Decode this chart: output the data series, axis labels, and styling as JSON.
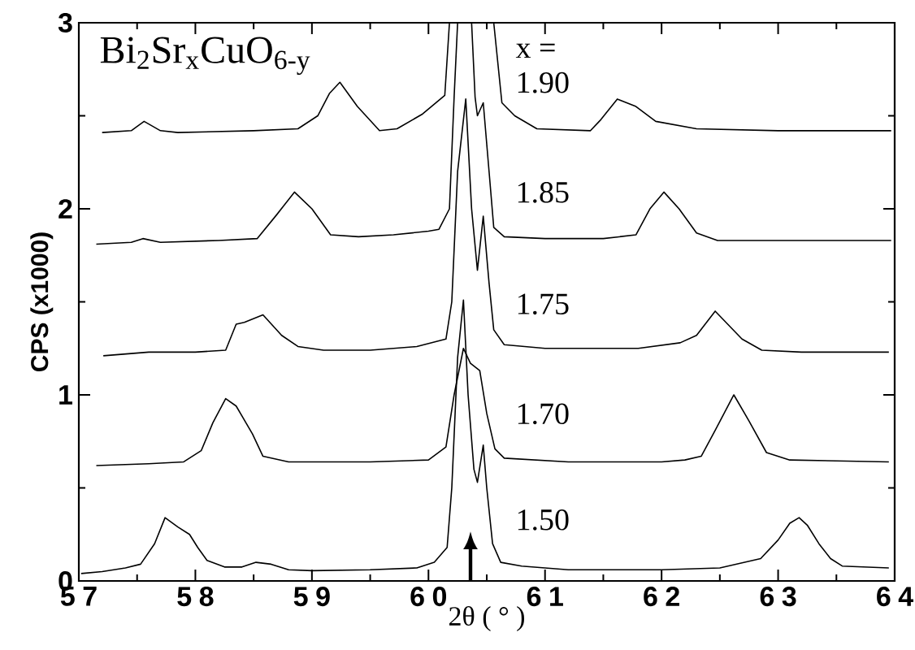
{
  "chart_data": {
    "type": "line",
    "title": "Bi$_{2}$Sr$_{x}$CuO$_{6-y}$",
    "xlabel": "2θ ( ° )",
    "ylabel": "CPS  (x1000)",
    "xlim": [
      57,
      64
    ],
    "ylim": [
      0,
      3
    ],
    "xticks": [
      57,
      58,
      59,
      60,
      61,
      62,
      63,
      64
    ],
    "yticks": [
      0,
      1,
      2,
      3
    ],
    "annotations": [
      "x ="
    ],
    "series": [
      {
        "name": "1.50",
        "color": "#000000",
        "x": [
          57.02,
          57.2,
          57.4,
          57.53,
          57.65,
          57.74,
          57.85,
          57.95,
          58.02,
          58.1,
          58.25,
          58.4,
          58.52,
          58.65,
          58.8,
          59.0,
          59.5,
          59.9,
          60.05,
          60.16,
          60.2,
          60.25,
          60.3,
          60.34,
          60.39,
          60.42,
          60.47,
          60.5,
          60.55,
          60.62,
          60.8,
          61.2,
          62.0,
          62.5,
          62.85,
          63.0,
          63.1,
          63.18,
          63.25,
          63.35,
          63.45,
          63.55,
          63.95
        ],
        "values": [
          0.04,
          0.05,
          0.07,
          0.09,
          0.2,
          0.34,
          0.29,
          0.25,
          0.18,
          0.11,
          0.075,
          0.075,
          0.1,
          0.09,
          0.06,
          0.055,
          0.06,
          0.07,
          0.1,
          0.18,
          0.5,
          1.2,
          1.51,
          1.0,
          0.6,
          0.53,
          0.73,
          0.5,
          0.2,
          0.1,
          0.08,
          0.06,
          0.06,
          0.07,
          0.12,
          0.22,
          0.31,
          0.34,
          0.3,
          0.2,
          0.12,
          0.08,
          0.07
        ]
      },
      {
        "name": "1.70",
        "color": "#000000",
        "x": [
          57.15,
          57.6,
          57.9,
          58.05,
          58.15,
          58.26,
          58.35,
          58.49,
          58.58,
          58.8,
          59.5,
          60.0,
          60.15,
          60.22,
          60.3,
          60.36,
          60.44,
          60.5,
          60.57,
          60.65,
          61.2,
          62.0,
          62.2,
          62.34,
          62.46,
          62.62,
          62.75,
          62.9,
          63.1,
          63.95
        ],
        "values": [
          0.62,
          0.63,
          0.64,
          0.7,
          0.85,
          0.98,
          0.94,
          0.79,
          0.67,
          0.64,
          0.64,
          0.65,
          0.72,
          1.0,
          1.25,
          1.17,
          1.13,
          0.9,
          0.71,
          0.66,
          0.64,
          0.64,
          0.65,
          0.67,
          0.81,
          1.0,
          0.86,
          0.69,
          0.65,
          0.64
        ]
      },
      {
        "name": "1.75",
        "color": "#000000",
        "x": [
          57.21,
          57.6,
          58.0,
          58.26,
          58.35,
          58.42,
          58.58,
          58.74,
          58.88,
          59.1,
          59.5,
          59.9,
          60.15,
          60.2,
          60.25,
          60.32,
          60.37,
          60.42,
          60.47,
          60.52,
          60.56,
          60.65,
          61.0,
          61.8,
          62.16,
          62.3,
          62.46,
          62.69,
          62.86,
          63.2,
          63.95
        ],
        "values": [
          1.21,
          1.23,
          1.23,
          1.24,
          1.38,
          1.39,
          1.43,
          1.32,
          1.26,
          1.24,
          1.24,
          1.26,
          1.3,
          1.5,
          2.2,
          2.59,
          2.0,
          1.67,
          1.96,
          1.6,
          1.35,
          1.27,
          1.25,
          1.25,
          1.28,
          1.32,
          1.45,
          1.3,
          1.24,
          1.23,
          1.23
        ]
      },
      {
        "name": "1.85",
        "color": "#000000",
        "x": [
          57.15,
          57.45,
          57.55,
          57.7,
          58.2,
          58.53,
          58.7,
          58.85,
          59.0,
          59.16,
          59.4,
          59.7,
          60.0,
          60.09,
          60.18,
          60.22,
          60.25,
          60.3,
          60.37,
          60.4,
          60.42,
          60.47,
          60.52,
          60.56,
          60.65,
          61.0,
          61.5,
          61.78,
          61.9,
          62.02,
          62.15,
          62.3,
          62.48,
          63.0,
          63.97
        ],
        "values": [
          1.81,
          1.82,
          1.84,
          1.82,
          1.83,
          1.84,
          1.97,
          2.09,
          2.0,
          1.86,
          1.85,
          1.86,
          1.88,
          1.89,
          2.0,
          2.6,
          3.0,
          null,
          3.0,
          2.6,
          2.5,
          2.57,
          2.2,
          1.9,
          1.85,
          1.84,
          1.84,
          1.86,
          2.0,
          2.09,
          2.0,
          1.87,
          1.83,
          1.83,
          1.83
        ]
      },
      {
        "name": "1.90",
        "color": "#000000",
        "x": [
          57.2,
          57.45,
          57.56,
          57.7,
          57.85,
          58.5,
          58.88,
          59.05,
          59.15,
          59.24,
          59.39,
          59.58,
          59.73,
          59.95,
          60.14,
          60.18,
          60.37,
          60.56,
          60.63,
          60.74,
          60.93,
          61.39,
          61.48,
          61.62,
          61.78,
          61.95,
          62.3,
          63.0,
          63.97
        ],
        "values": [
          2.41,
          2.42,
          2.47,
          2.42,
          2.41,
          2.42,
          2.43,
          2.5,
          2.62,
          2.68,
          2.55,
          2.42,
          2.43,
          2.51,
          2.61,
          3.0,
          null,
          3.0,
          2.57,
          2.5,
          2.43,
          2.42,
          2.48,
          2.59,
          2.55,
          2.47,
          2.43,
          2.42,
          2.42
        ]
      }
    ]
  }
}
